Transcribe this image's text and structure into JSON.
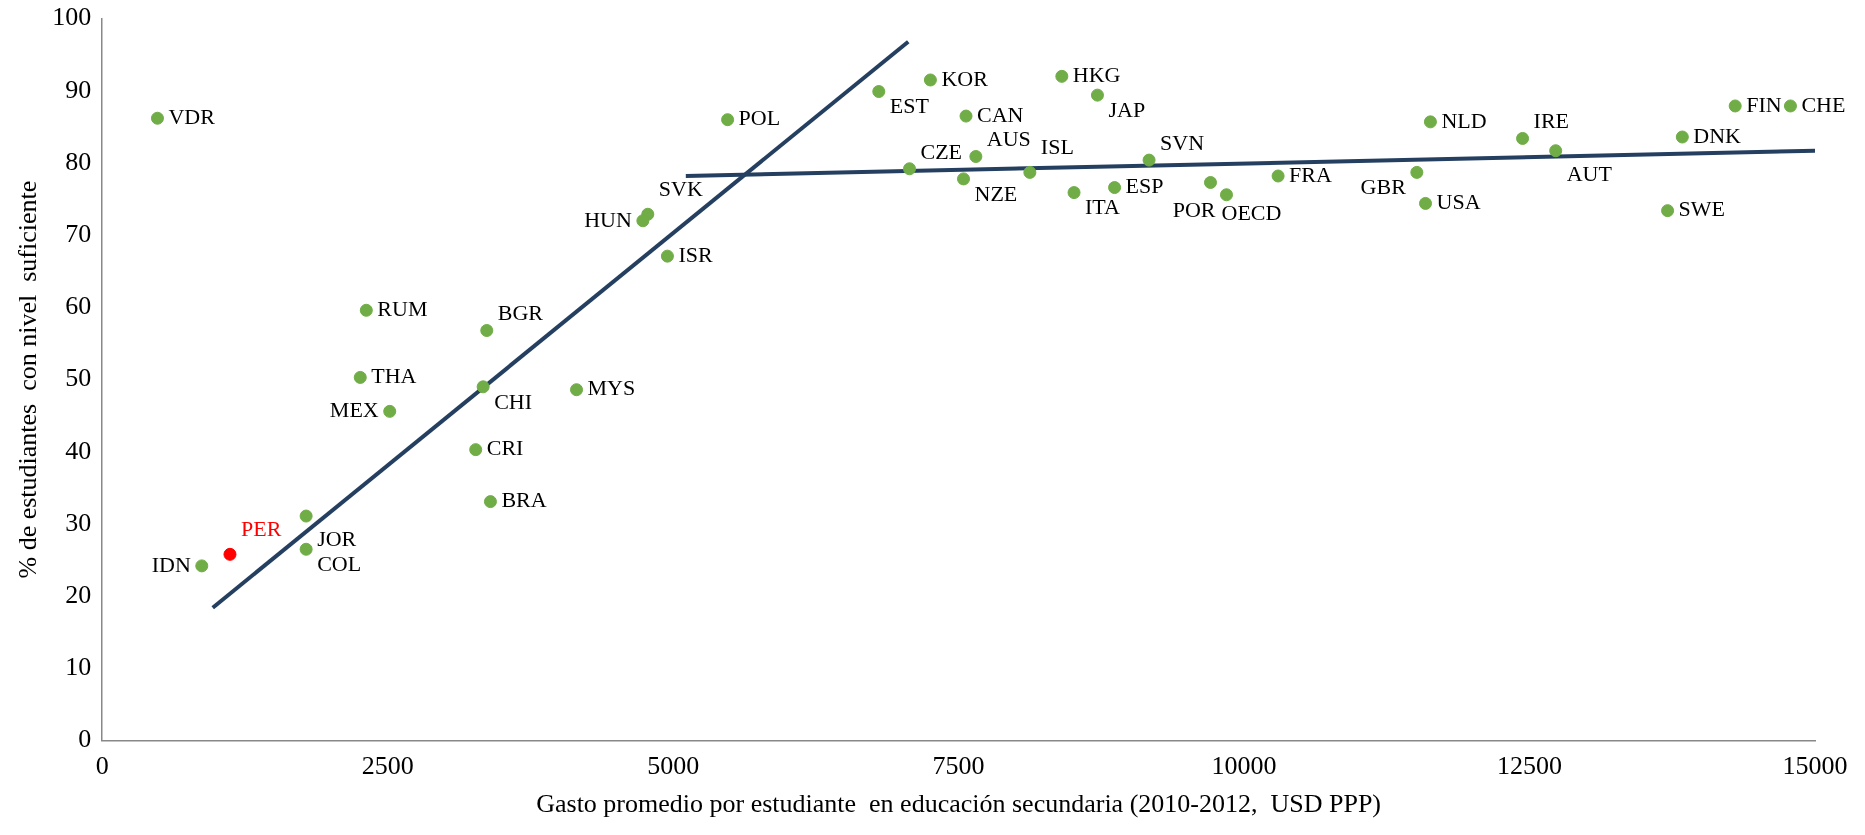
{
  "chart_data": {
    "type": "scatter",
    "xlabel": "Gasto promedio por estudiante  en educación secundaria (2010-2012,  USD PPP)",
    "ylabel": "% de estudiantes  con nivel  suficiente",
    "xlim": [
      0,
      15000
    ],
    "ylim": [
      0,
      100
    ],
    "xticks": [
      0,
      2500,
      5000,
      7500,
      10000,
      12500,
      15000
    ],
    "yticks": [
      0,
      10,
      20,
      30,
      40,
      50,
      60,
      70,
      80,
      90,
      100
    ],
    "grid": false,
    "legend": false,
    "marker": "circle",
    "series": [
      {
        "type": "scatter",
        "x": [
          484,
          1119,
          872,
          1786,
          1786,
          2260,
          2313,
          2518,
          3271,
          3336,
          3368,
          3400,
          4154,
          4778,
          4735,
          4950,
          5477,
          6801,
          7253,
          7070,
          7565,
          7651,
          7543,
          8404,
          8716,
          8124,
          8511,
          8866,
          9168,
          9706,
          9846,
          10298,
          11632,
          11513,
          11589,
          12439,
          12729,
          13709,
          13838,
          14301,
          14785
        ],
        "values": [
          86.2,
          25.8,
          24.2,
          31.1,
          26.5,
          50.3,
          59.6,
          45.6,
          40.3,
          49.0,
          56.8,
          33.1,
          48.6,
          72.9,
          72.0,
          67.1,
          86.0,
          89.9,
          91.5,
          79.2,
          86.5,
          80.9,
          77.8,
          92.0,
          89.4,
          78.7,
          75.9,
          76.6,
          80.4,
          77.3,
          75.6,
          78.2,
          85.7,
          78.7,
          74.4,
          83.4,
          81.7,
          73.4,
          83.6,
          87.9,
          87.9
        ],
        "colors": [
          "#70ad47",
          "#ff0000",
          "#70ad47",
          "#70ad47",
          "#70ad47",
          "#70ad47",
          "#70ad47",
          "#70ad47",
          "#70ad47",
          "#70ad47",
          "#70ad47",
          "#70ad47",
          "#70ad47",
          "#70ad47",
          "#70ad47",
          "#70ad47",
          "#70ad47",
          "#70ad47",
          "#70ad47",
          "#70ad47",
          "#70ad47",
          "#70ad47",
          "#70ad47",
          "#70ad47",
          "#70ad47",
          "#70ad47",
          "#70ad47",
          "#70ad47",
          "#70ad47",
          "#70ad47",
          "#70ad47",
          "#70ad47",
          "#70ad47",
          "#70ad47",
          "#70ad47",
          "#70ad47",
          "#70ad47",
          "#70ad47",
          "#70ad47",
          "#70ad47",
          "#70ad47"
        ]
      },
      {
        "type": "line",
        "marker": "none",
        "color": "#243f60",
        "x": [
          968,
          7059
        ],
        "values": [
          18.4,
          96.8
        ]
      },
      {
        "type": "line",
        "marker": "none",
        "color": "#243f60",
        "x": [
          5111,
          15000
        ],
        "values": [
          78.2,
          81.7
        ]
      }
    ],
    "annotations": [
      {
        "text": "VDR",
        "x": 484,
        "y": 86.2
      },
      {
        "text": "PER",
        "x": 1119,
        "y": 25.8
      },
      {
        "text": "IDN",
        "x": 872,
        "y": 24.2
      },
      {
        "text": "JOR",
        "x": 1786,
        "y": 31.1
      },
      {
        "text": "COL",
        "x": 1786,
        "y": 26.5
      },
      {
        "text": "THA",
        "x": 2260,
        "y": 50.3
      },
      {
        "text": "RUM",
        "x": 2313,
        "y": 59.6
      },
      {
        "text": "MEX",
        "x": 2518,
        "y": 45.6
      },
      {
        "text": "CRI",
        "x": 3271,
        "y": 40.3
      },
      {
        "text": "CHI",
        "x": 3336,
        "y": 49.0
      },
      {
        "text": "BGR",
        "x": 3368,
        "y": 56.8
      },
      {
        "text": "BRA",
        "x": 3400,
        "y": 33.1
      },
      {
        "text": "MYS",
        "x": 4154,
        "y": 48.6
      },
      {
        "text": "SVK",
        "x": 4778,
        "y": 72.9
      },
      {
        "text": "HUN",
        "x": 4735,
        "y": 72.0
      },
      {
        "text": "ISR",
        "x": 4950,
        "y": 67.1
      },
      {
        "text": "POL",
        "x": 5477,
        "y": 86.0
      },
      {
        "text": "EST",
        "x": 6801,
        "y": 89.9
      },
      {
        "text": "KOR",
        "x": 7253,
        "y": 91.5
      },
      {
        "text": "CZE",
        "x": 7070,
        "y": 79.2
      },
      {
        "text": "CAN",
        "x": 7565,
        "y": 86.5
      },
      {
        "text": "AUS",
        "x": 7651,
        "y": 80.9
      },
      {
        "text": "NZE",
        "x": 7543,
        "y": 77.8
      },
      {
        "text": "HKG",
        "x": 8404,
        "y": 92.0
      },
      {
        "text": "JAP",
        "x": 8716,
        "y": 89.4
      },
      {
        "text": "ISL",
        "x": 8124,
        "y": 78.7
      },
      {
        "text": "ITA",
        "x": 8511,
        "y": 75.9
      },
      {
        "text": "ESP",
        "x": 8866,
        "y": 76.6
      },
      {
        "text": "SVN",
        "x": 9168,
        "y": 80.4
      },
      {
        "text": "OECD",
        "x": 9706,
        "y": 77.3
      },
      {
        "text": "POR",
        "x": 9846,
        "y": 75.6
      },
      {
        "text": "FRA",
        "x": 10298,
        "y": 78.2
      },
      {
        "text": "NLD",
        "x": 11632,
        "y": 85.7
      },
      {
        "text": "GBR",
        "x": 11513,
        "y": 78.7
      },
      {
        "text": "USA",
        "x": 11589,
        "y": 74.4
      },
      {
        "text": "IRE",
        "x": 12439,
        "y": 83.4
      },
      {
        "text": "AUT",
        "x": 12729,
        "y": 81.7
      },
      {
        "text": "SWE",
        "x": 13709,
        "y": 73.4
      },
      {
        "text": "DNK",
        "x": 13838,
        "y": 83.6
      },
      {
        "text": "FIN",
        "x": 14301,
        "y": 87.9
      },
      {
        "text": "CHE",
        "x": 14785,
        "y": 87.9
      }
    ]
  }
}
